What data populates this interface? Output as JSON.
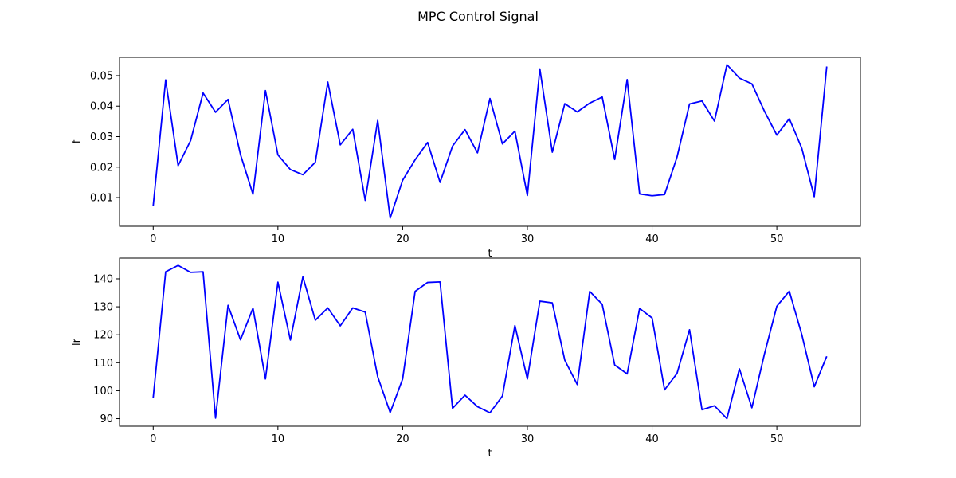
{
  "figure": {
    "title": "MPC Control Signal"
  },
  "colors": {
    "line": "#0000ff",
    "axes": "#000000",
    "background": "#ffffff"
  },
  "chart_data": [
    {
      "type": "line",
      "xlabel": "t",
      "ylabel": "f",
      "xlim": [
        -2.7,
        56.7
      ],
      "ylim": [
        0.0006,
        0.056
      ],
      "xticks": [
        0,
        10,
        20,
        30,
        40,
        50
      ],
      "yticks": [
        0.01,
        0.02,
        0.03,
        0.04,
        0.05
      ],
      "ytick_labels": [
        "0.01",
        "0.02",
        "0.03",
        "0.04",
        "0.05"
      ],
      "grid": false,
      "series": [
        {
          "color": "#0000ff",
          "x": [
            0,
            1,
            2,
            3,
            4,
            5,
            6,
            7,
            8,
            9,
            10,
            11,
            12,
            13,
            14,
            15,
            16,
            17,
            18,
            19,
            20,
            21,
            22,
            23,
            24,
            25,
            26,
            27,
            28,
            29,
            30,
            31,
            32,
            33,
            34,
            35,
            36,
            37,
            38,
            39,
            40,
            41,
            42,
            43,
            44,
            45,
            46,
            47,
            48,
            49,
            50,
            51,
            52,
            53,
            54
          ],
          "values": [
            0.0073,
            0.0486,
            0.0205,
            0.0287,
            0.0443,
            0.038,
            0.0422,
            0.0241,
            0.0111,
            0.0451,
            0.024,
            0.0192,
            0.0175,
            0.0216,
            0.0479,
            0.0273,
            0.0324,
            0.0091,
            0.0353,
            0.0033,
            0.0157,
            0.0224,
            0.0281,
            0.015,
            0.0269,
            0.0323,
            0.0247,
            0.0425,
            0.0276,
            0.0318,
            0.0107,
            0.0522,
            0.0249,
            0.0408,
            0.0381,
            0.041,
            0.043,
            0.0225,
            0.0487,
            0.0112,
            0.0106,
            0.011,
            0.0233,
            0.0407,
            0.0417,
            0.0351,
            0.0536,
            0.0492,
            0.0473,
            0.0384,
            0.0305,
            0.0359,
            0.0262,
            0.0103,
            0.053
          ]
        }
      ]
    },
    {
      "type": "line",
      "xlabel": "t",
      "ylabel": "lr",
      "xlim": [
        -2.7,
        56.7
      ],
      "ylim": [
        87.3,
        147.4
      ],
      "xticks": [
        0,
        10,
        20,
        30,
        40,
        50
      ],
      "yticks": [
        90,
        100,
        110,
        120,
        130,
        140
      ],
      "ytick_labels": [
        "90",
        "100",
        "110",
        "120",
        "130",
        "140"
      ],
      "grid": false,
      "series": [
        {
          "color": "#0000ff",
          "x": [
            0,
            1,
            2,
            3,
            4,
            5,
            6,
            7,
            8,
            9,
            10,
            11,
            12,
            13,
            14,
            15,
            16,
            17,
            18,
            19,
            20,
            21,
            22,
            23,
            24,
            25,
            26,
            27,
            28,
            29,
            30,
            31,
            32,
            33,
            34,
            35,
            36,
            37,
            38,
            39,
            40,
            41,
            42,
            43,
            44,
            45,
            46,
            47,
            48,
            49,
            50,
            51,
            52,
            53,
            54
          ],
          "values": [
            97.5,
            142.5,
            144.8,
            142.3,
            142.5,
            90.2,
            130.5,
            118.2,
            129.5,
            104.2,
            138.8,
            118.1,
            140.7,
            125.2,
            129.6,
            123.2,
            129.6,
            128.1,
            105.0,
            92.2,
            104.2,
            135.5,
            138.7,
            138.9,
            93.7,
            98.4,
            94.3,
            92.1,
            98.1,
            123.3,
            104.2,
            132.0,
            131.4,
            110.9,
            102.2,
            135.5,
            130.9,
            109.2,
            106.0,
            129.4,
            126.0,
            100.3,
            106.2,
            121.8,
            93.2,
            94.6,
            90.0,
            107.8,
            93.9,
            113.0,
            130.2,
            135.6,
            120.1,
            101.4,
            112.3
          ]
        }
      ]
    }
  ]
}
